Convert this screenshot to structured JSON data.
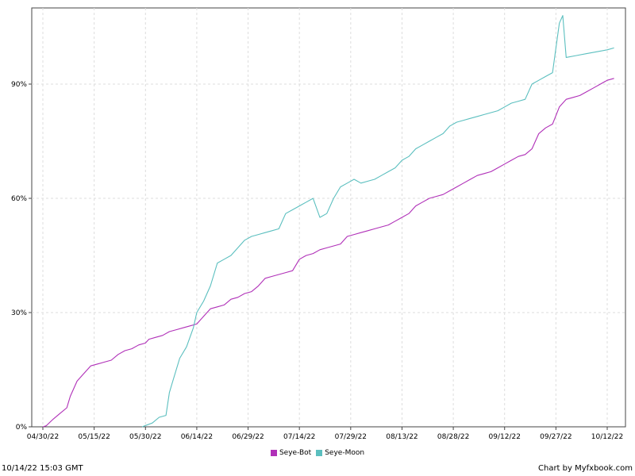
{
  "chart_data": {
    "type": "line",
    "x_ticks": [
      "04/30/22",
      "05/15/22",
      "05/30/22",
      "06/14/22",
      "06/29/22",
      "07/14/22",
      "07/29/22",
      "08/13/22",
      "08/28/22",
      "09/12/22",
      "09/27/22",
      "10/12/22"
    ],
    "y_ticks": [
      "0%",
      "30%",
      "60%",
      "90%"
    ],
    "ylim": [
      0,
      110
    ],
    "grid": true,
    "legend_position": "bottom",
    "series": [
      {
        "name": "Seye-Bot",
        "color": "#b030b8",
        "points": [
          [
            "2022-04-30",
            0
          ],
          [
            "2022-05-01",
            0.3
          ],
          [
            "2022-05-03",
            2
          ],
          [
            "2022-05-05",
            3.5
          ],
          [
            "2022-05-07",
            5
          ],
          [
            "2022-05-08",
            8
          ],
          [
            "2022-05-10",
            12
          ],
          [
            "2022-05-12",
            14
          ],
          [
            "2022-05-14",
            16
          ],
          [
            "2022-05-16",
            16.5
          ],
          [
            "2022-05-18",
            17
          ],
          [
            "2022-05-20",
            17.5
          ],
          [
            "2022-05-22",
            19
          ],
          [
            "2022-05-24",
            20
          ],
          [
            "2022-05-26",
            20.5
          ],
          [
            "2022-05-28",
            21.5
          ],
          [
            "2022-05-30",
            22
          ],
          [
            "2022-05-31",
            23
          ],
          [
            "2022-06-02",
            23.5
          ],
          [
            "2022-06-04",
            24
          ],
          [
            "2022-06-06",
            25
          ],
          [
            "2022-06-08",
            25.5
          ],
          [
            "2022-06-10",
            26
          ],
          [
            "2022-06-12",
            26.5
          ],
          [
            "2022-06-14",
            27
          ],
          [
            "2022-06-16",
            29
          ],
          [
            "2022-06-18",
            31
          ],
          [
            "2022-06-20",
            31.5
          ],
          [
            "2022-06-22",
            32
          ],
          [
            "2022-06-24",
            33.5
          ],
          [
            "2022-06-26",
            34
          ],
          [
            "2022-06-28",
            35
          ],
          [
            "2022-06-30",
            35.5
          ],
          [
            "2022-07-02",
            37
          ],
          [
            "2022-07-04",
            39
          ],
          [
            "2022-07-06",
            39.5
          ],
          [
            "2022-07-08",
            40
          ],
          [
            "2022-07-10",
            40.5
          ],
          [
            "2022-07-12",
            41
          ],
          [
            "2022-07-14",
            44
          ],
          [
            "2022-07-16",
            45
          ],
          [
            "2022-07-18",
            45.5
          ],
          [
            "2022-07-20",
            46.5
          ],
          [
            "2022-07-22",
            47
          ],
          [
            "2022-07-24",
            47.5
          ],
          [
            "2022-07-26",
            48
          ],
          [
            "2022-07-28",
            50
          ],
          [
            "2022-07-30",
            50.5
          ],
          [
            "2022-08-01",
            51
          ],
          [
            "2022-08-03",
            51.5
          ],
          [
            "2022-08-05",
            52
          ],
          [
            "2022-08-07",
            52.5
          ],
          [
            "2022-08-09",
            53
          ],
          [
            "2022-08-11",
            54
          ],
          [
            "2022-08-13",
            55
          ],
          [
            "2022-08-15",
            56
          ],
          [
            "2022-08-17",
            58
          ],
          [
            "2022-08-19",
            59
          ],
          [
            "2022-08-21",
            60
          ],
          [
            "2022-08-23",
            60.5
          ],
          [
            "2022-08-25",
            61
          ],
          [
            "2022-08-27",
            62
          ],
          [
            "2022-08-29",
            63
          ],
          [
            "2022-08-31",
            64
          ],
          [
            "2022-09-02",
            65
          ],
          [
            "2022-09-04",
            66
          ],
          [
            "2022-09-06",
            66.5
          ],
          [
            "2022-09-08",
            67
          ],
          [
            "2022-09-10",
            68
          ],
          [
            "2022-09-12",
            69
          ],
          [
            "2022-09-14",
            70
          ],
          [
            "2022-09-16",
            71
          ],
          [
            "2022-09-18",
            71.5
          ],
          [
            "2022-09-20",
            73
          ],
          [
            "2022-09-22",
            77
          ],
          [
            "2022-09-24",
            78.5
          ],
          [
            "2022-09-26",
            79.5
          ],
          [
            "2022-09-28",
            84
          ],
          [
            "2022-09-30",
            86
          ],
          [
            "2022-10-02",
            86.5
          ],
          [
            "2022-10-04",
            87
          ],
          [
            "2022-10-06",
            88
          ],
          [
            "2022-10-08",
            89
          ],
          [
            "2022-10-10",
            90
          ],
          [
            "2022-10-12",
            91
          ],
          [
            "2022-10-14",
            91.5
          ]
        ]
      },
      {
        "name": "Seye-Moon",
        "color": "#5bbfbf",
        "points": [
          [
            "2022-05-29",
            0
          ],
          [
            "2022-06-01",
            1
          ],
          [
            "2022-06-03",
            2.5
          ],
          [
            "2022-06-05",
            3
          ],
          [
            "2022-06-06",
            9
          ],
          [
            "2022-06-07",
            12
          ],
          [
            "2022-06-09",
            18
          ],
          [
            "2022-06-11",
            21
          ],
          [
            "2022-06-13",
            26
          ],
          [
            "2022-06-14",
            30
          ],
          [
            "2022-06-16",
            33
          ],
          [
            "2022-06-18",
            37
          ],
          [
            "2022-06-20",
            43
          ],
          [
            "2022-06-22",
            44
          ],
          [
            "2022-06-24",
            45
          ],
          [
            "2022-06-26",
            47
          ],
          [
            "2022-06-28",
            49
          ],
          [
            "2022-06-30",
            50
          ],
          [
            "2022-07-02",
            50.5
          ],
          [
            "2022-07-04",
            51
          ],
          [
            "2022-07-06",
            51.5
          ],
          [
            "2022-07-08",
            52
          ],
          [
            "2022-07-10",
            56
          ],
          [
            "2022-07-12",
            57
          ],
          [
            "2022-07-14",
            58
          ],
          [
            "2022-07-16",
            59
          ],
          [
            "2022-07-18",
            60
          ],
          [
            "2022-07-20",
            55
          ],
          [
            "2022-07-22",
            56
          ],
          [
            "2022-07-24",
            60
          ],
          [
            "2022-07-26",
            63
          ],
          [
            "2022-07-28",
            64
          ],
          [
            "2022-07-30",
            65
          ],
          [
            "2022-08-01",
            64
          ],
          [
            "2022-08-03",
            64.5
          ],
          [
            "2022-08-05",
            65
          ],
          [
            "2022-08-07",
            66
          ],
          [
            "2022-08-09",
            67
          ],
          [
            "2022-08-11",
            68
          ],
          [
            "2022-08-13",
            70
          ],
          [
            "2022-08-15",
            71
          ],
          [
            "2022-08-17",
            73
          ],
          [
            "2022-08-19",
            74
          ],
          [
            "2022-08-21",
            75
          ],
          [
            "2022-08-23",
            76
          ],
          [
            "2022-08-25",
            77
          ],
          [
            "2022-08-27",
            79
          ],
          [
            "2022-08-29",
            80
          ],
          [
            "2022-08-31",
            80.5
          ],
          [
            "2022-09-02",
            81
          ],
          [
            "2022-09-04",
            81.5
          ],
          [
            "2022-09-06",
            82
          ],
          [
            "2022-09-08",
            82.5
          ],
          [
            "2022-09-10",
            83
          ],
          [
            "2022-09-12",
            84
          ],
          [
            "2022-09-14",
            85
          ],
          [
            "2022-09-16",
            85.5
          ],
          [
            "2022-09-18",
            86
          ],
          [
            "2022-09-20",
            90
          ],
          [
            "2022-09-22",
            91
          ],
          [
            "2022-09-24",
            92
          ],
          [
            "2022-09-26",
            93
          ],
          [
            "2022-09-28",
            106
          ],
          [
            "2022-09-29",
            108
          ],
          [
            "2022-09-30",
            97
          ],
          [
            "2022-10-03",
            97.5
          ],
          [
            "2022-10-06",
            98
          ],
          [
            "2022-10-09",
            98.5
          ],
          [
            "2022-10-12",
            99
          ],
          [
            "2022-10-14",
            99.5
          ]
        ]
      }
    ]
  },
  "footer": {
    "timestamp": "10/14/22 15:03 GMT",
    "credit": "Chart by Myfxbook.com"
  }
}
